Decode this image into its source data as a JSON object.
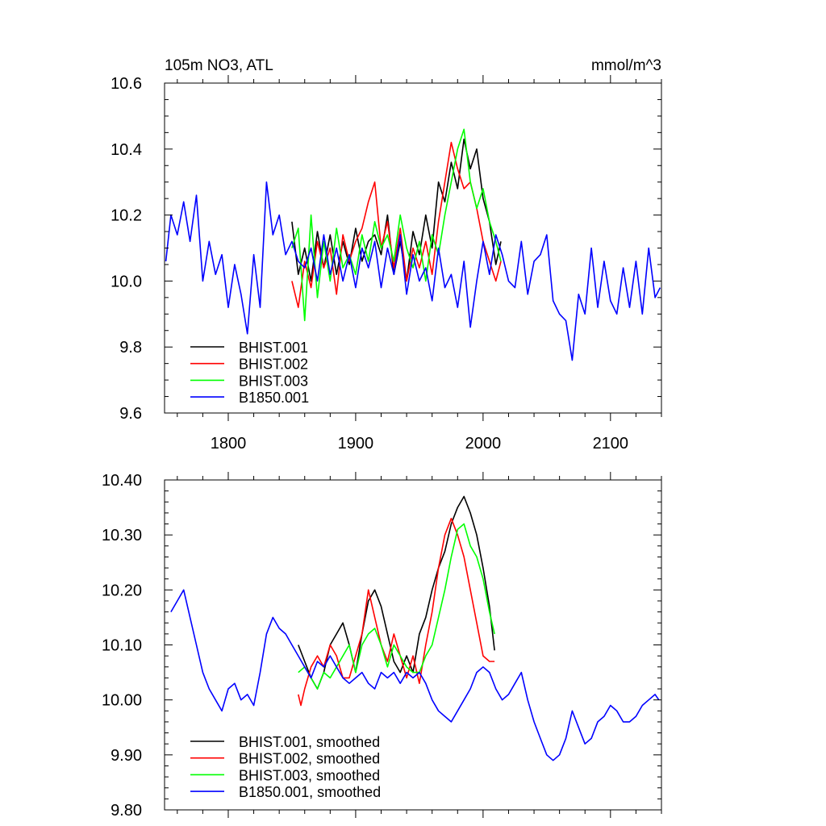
{
  "chart_data": [
    {
      "type": "line",
      "title": "105m NO3, ATL",
      "units": "mmol/m^3",
      "xlim": [
        1750,
        2140
      ],
      "ylim": [
        9.6,
        10.6
      ],
      "xticks": [
        1800,
        1900,
        2000,
        2100
      ],
      "xtick_labels": [
        "1800",
        "1900",
        "2000",
        "2100"
      ],
      "yticks": [
        9.6,
        9.8,
        10.0,
        10.2,
        10.4,
        10.6
      ],
      "ytick_labels": [
        "9.6",
        "9.8",
        "10.0",
        "10.2",
        "10.4",
        "10.6"
      ],
      "legend_position": "bottom-left",
      "series": [
        {
          "name": "BHIST.001",
          "color": "#000000",
          "x": [
            1850,
            1855,
            1860,
            1865,
            1870,
            1875,
            1880,
            1885,
            1890,
            1895,
            1900,
            1905,
            1910,
            1915,
            1920,
            1925,
            1930,
            1935,
            1940,
            1945,
            1950,
            1955,
            1960,
            1965,
            1970,
            1975,
            1980,
            1985,
            1990,
            1995,
            2000,
            2005,
            2010,
            2014
          ],
          "y": [
            10.18,
            10.02,
            10.1,
            10.0,
            10.15,
            10.04,
            10.14,
            10.02,
            10.12,
            10.05,
            10.16,
            10.06,
            10.12,
            10.14,
            10.08,
            10.2,
            10.02,
            10.12,
            10.0,
            10.15,
            10.08,
            10.2,
            10.1,
            10.3,
            10.24,
            10.36,
            10.28,
            10.43,
            10.34,
            10.4,
            10.25,
            10.18,
            10.05,
            10.12
          ]
        },
        {
          "name": "BHIST.002",
          "color": "#ff0000",
          "x": [
            1850,
            1855,
            1860,
            1865,
            1870,
            1875,
            1880,
            1885,
            1890,
            1895,
            1900,
            1905,
            1910,
            1915,
            1920,
            1925,
            1930,
            1935,
            1940,
            1945,
            1950,
            1955,
            1960,
            1965,
            1970,
            1975,
            1980,
            1985,
            1990,
            1995,
            2000,
            2005,
            2010,
            2014
          ],
          "y": [
            10.0,
            9.92,
            10.06,
            9.98,
            10.12,
            10.04,
            10.1,
            9.96,
            10.14,
            10.06,
            10.12,
            10.16,
            10.24,
            10.3,
            10.1,
            10.18,
            10.04,
            10.16,
            10.0,
            10.1,
            10.04,
            10.12,
            10.02,
            10.18,
            10.3,
            10.42,
            10.34,
            10.28,
            10.3,
            10.22,
            10.12,
            10.06,
            10.0,
            10.06
          ]
        },
        {
          "name": "BHIST.003",
          "color": "#00ff00",
          "x": [
            1850,
            1855,
            1860,
            1865,
            1870,
            1875,
            1880,
            1885,
            1890,
            1895,
            1900,
            1905,
            1910,
            1915,
            1920,
            1925,
            1930,
            1935,
            1940,
            1945,
            1950,
            1955,
            1960,
            1965,
            1970,
            1975,
            1980,
            1985,
            1990,
            1995,
            2000,
            2005,
            2010,
            2014
          ],
          "y": [
            10.1,
            10.16,
            9.88,
            10.2,
            9.95,
            10.12,
            10.0,
            10.16,
            10.04,
            10.08,
            10.02,
            10.14,
            10.06,
            10.18,
            10.1,
            10.14,
            10.06,
            10.2,
            10.1,
            10.04,
            10.12,
            10.0,
            10.14,
            10.08,
            10.2,
            10.3,
            10.4,
            10.46,
            10.3,
            10.22,
            10.28,
            10.18,
            10.12,
            10.06
          ]
        },
        {
          "name": "B1850.001",
          "color": "#0000ff",
          "x": [
            1751,
            1755,
            1760,
            1765,
            1770,
            1775,
            1780,
            1785,
            1790,
            1795,
            1800,
            1805,
            1810,
            1815,
            1820,
            1825,
            1830,
            1835,
            1840,
            1845,
            1850,
            1855,
            1860,
            1865,
            1870,
            1875,
            1880,
            1885,
            1890,
            1895,
            1900,
            1905,
            1910,
            1915,
            1920,
            1925,
            1930,
            1935,
            1940,
            1945,
            1950,
            1955,
            1960,
            1965,
            1970,
            1975,
            1980,
            1985,
            1990,
            1995,
            2000,
            2005,
            2010,
            2015,
            2020,
            2025,
            2030,
            2035,
            2040,
            2045,
            2050,
            2055,
            2060,
            2065,
            2070,
            2075,
            2080,
            2085,
            2090,
            2095,
            2100,
            2105,
            2110,
            2115,
            2120,
            2125,
            2130,
            2135,
            2139
          ],
          "y": [
            10.06,
            10.2,
            10.14,
            10.24,
            10.12,
            10.26,
            10.0,
            10.12,
            10.02,
            10.08,
            9.92,
            10.05,
            9.96,
            9.84,
            10.08,
            9.92,
            10.3,
            10.14,
            10.2,
            10.08,
            10.12,
            10.06,
            10.04,
            10.1,
            10.0,
            10.14,
            10.02,
            10.1,
            10.0,
            10.08,
            9.98,
            10.1,
            10.04,
            10.12,
            9.98,
            10.1,
            10.02,
            10.14,
            9.96,
            10.08,
            10.0,
            10.04,
            9.94,
            10.1,
            9.98,
            10.02,
            9.92,
            10.06,
            9.86,
            10.0,
            10.12,
            10.02,
            10.14,
            10.08,
            10.0,
            9.98,
            10.12,
            9.96,
            10.06,
            10.08,
            10.14,
            9.94,
            9.9,
            9.88,
            9.76,
            9.96,
            9.9,
            10.1,
            9.92,
            10.06,
            9.94,
            9.9,
            10.04,
            9.92,
            10.06,
            9.9,
            10.1,
            9.95,
            9.98
          ]
        }
      ]
    },
    {
      "type": "line",
      "xlim": [
        1750,
        2140
      ],
      "ylim": [
        9.8,
        10.4
      ],
      "xticks": [
        1800,
        1900,
        2000,
        2100
      ],
      "yticks": [
        9.8,
        9.9,
        10.0,
        10.1,
        10.2,
        10.3,
        10.4
      ],
      "ytick_labels": [
        "9.80",
        "9.90",
        "10.00",
        "10.10",
        "10.20",
        "10.30",
        "10.40"
      ],
      "legend_position": "bottom-left",
      "series": [
        {
          "name": "BHIST.001, smoothed",
          "color": "#000000",
          "x": [
            1855,
            1860,
            1865,
            1870,
            1875,
            1880,
            1885,
            1890,
            1895,
            1900,
            1905,
            1910,
            1915,
            1920,
            1925,
            1930,
            1935,
            1940,
            1945,
            1950,
            1955,
            1960,
            1965,
            1970,
            1975,
            1980,
            1985,
            1990,
            1995,
            2000,
            2005,
            2009
          ],
          "y": [
            10.1,
            10.07,
            10.04,
            10.02,
            10.05,
            10.1,
            10.12,
            10.14,
            10.1,
            10.05,
            10.12,
            10.18,
            10.2,
            10.17,
            10.12,
            10.07,
            10.05,
            10.08,
            10.05,
            10.12,
            10.15,
            10.2,
            10.24,
            10.27,
            10.32,
            10.35,
            10.37,
            10.34,
            10.3,
            10.24,
            10.17,
            10.09
          ]
        },
        {
          "name": "BHIST.002, smoothed",
          "color": "#ff0000",
          "x": [
            1855,
            1857,
            1860,
            1865,
            1870,
            1875,
            1880,
            1885,
            1890,
            1895,
            1900,
            1905,
            1910,
            1915,
            1920,
            1925,
            1930,
            1935,
            1940,
            1945,
            1950,
            1955,
            1960,
            1965,
            1970,
            1975,
            1980,
            1985,
            1990,
            1995,
            2000,
            2005,
            2009
          ],
          "y": [
            10.01,
            9.99,
            10.02,
            10.06,
            10.08,
            10.06,
            10.1,
            10.08,
            10.04,
            10.04,
            10.08,
            10.12,
            10.2,
            10.15,
            10.1,
            10.07,
            10.12,
            10.08,
            10.04,
            10.08,
            10.03,
            10.1,
            10.16,
            10.24,
            10.3,
            10.33,
            10.3,
            10.26,
            10.2,
            10.14,
            10.08,
            10.07,
            10.07
          ]
        },
        {
          "name": "BHIST.003, smoothed",
          "color": "#00ff00",
          "x": [
            1855,
            1860,
            1865,
            1870,
            1875,
            1880,
            1885,
            1890,
            1895,
            1900,
            1905,
            1910,
            1915,
            1920,
            1925,
            1930,
            1935,
            1940,
            1945,
            1950,
            1955,
            1960,
            1965,
            1970,
            1975,
            1980,
            1985,
            1990,
            1995,
            2000,
            2005,
            2009
          ],
          "y": [
            10.05,
            10.06,
            10.04,
            10.02,
            10.05,
            10.04,
            10.06,
            10.08,
            10.1,
            10.05,
            10.1,
            10.12,
            10.13,
            10.1,
            10.06,
            10.1,
            10.08,
            10.06,
            10.05,
            10.05,
            10.08,
            10.1,
            10.15,
            10.2,
            10.26,
            10.31,
            10.32,
            10.28,
            10.26,
            10.22,
            10.16,
            10.12
          ]
        },
        {
          "name": "B1850.001, smoothed",
          "color": "#0000ff",
          "x": [
            1755,
            1760,
            1765,
            1770,
            1775,
            1780,
            1785,
            1790,
            1795,
            1800,
            1805,
            1810,
            1815,
            1820,
            1825,
            1830,
            1835,
            1840,
            1845,
            1850,
            1855,
            1860,
            1865,
            1870,
            1875,
            1880,
            1885,
            1890,
            1895,
            1900,
            1905,
            1910,
            1915,
            1920,
            1925,
            1930,
            1935,
            1940,
            1945,
            1950,
            1955,
            1960,
            1965,
            1970,
            1975,
            1980,
            1985,
            1990,
            1995,
            2000,
            2005,
            2010,
            2015,
            2020,
            2025,
            2030,
            2035,
            2040,
            2045,
            2050,
            2055,
            2060,
            2065,
            2070,
            2075,
            2080,
            2085,
            2090,
            2095,
            2100,
            2105,
            2110,
            2115,
            2120,
            2125,
            2130,
            2135,
            2138
          ],
          "y": [
            10.16,
            10.18,
            10.2,
            10.15,
            10.1,
            10.05,
            10.02,
            10.0,
            9.98,
            10.02,
            10.03,
            10.0,
            10.01,
            9.99,
            10.05,
            10.12,
            10.15,
            10.13,
            10.12,
            10.1,
            10.08,
            10.06,
            10.04,
            10.07,
            10.06,
            10.08,
            10.06,
            10.04,
            10.03,
            10.04,
            10.05,
            10.03,
            10.02,
            10.05,
            10.04,
            10.05,
            10.03,
            10.05,
            10.04,
            10.05,
            10.03,
            10.0,
            9.98,
            9.97,
            9.96,
            9.98,
            10.0,
            10.02,
            10.05,
            10.06,
            10.05,
            10.02,
            10.0,
            10.01,
            10.03,
            10.05,
            10.0,
            9.96,
            9.93,
            9.9,
            9.89,
            9.9,
            9.93,
            9.98,
            9.95,
            9.92,
            9.93,
            9.96,
            9.97,
            9.99,
            9.98,
            9.96,
            9.96,
            9.97,
            9.99,
            10.0,
            10.01,
            10.0
          ]
        }
      ]
    }
  ]
}
